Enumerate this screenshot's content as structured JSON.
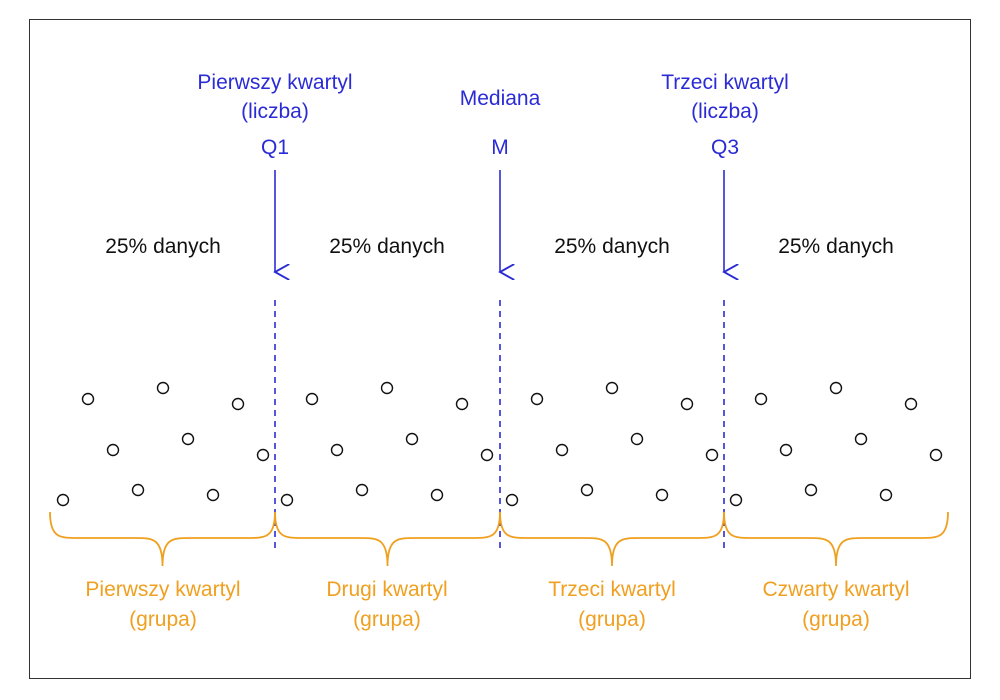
{
  "colors": {
    "marker": "#2b2bd6",
    "group": "#f0a020",
    "text": "#111111",
    "frame": "#333333"
  },
  "markers": [
    {
      "line1": "Pierwszy kwartyl",
      "line2": "(liczba)",
      "symbol": "Q1"
    },
    {
      "line1": "",
      "line2": "Mediana",
      "symbol": "M"
    },
    {
      "line1": "Trzeci kwartyl",
      "line2": "(liczba)",
      "symbol": "Q3"
    }
  ],
  "share_labels": [
    "25% danych",
    "25% danych",
    "25% danych",
    "25% danych"
  ],
  "groups": [
    {
      "line1": "Pierwszy kwartyl",
      "line2": "(grupa)"
    },
    {
      "line1": "Drugi kwartyl",
      "line2": "(grupa)"
    },
    {
      "line1": "Trzeci kwartyl",
      "line2": "(grupa)"
    },
    {
      "line1": "Czwarty kwartyl",
      "line2": "(grupa)"
    }
  ],
  "points_per_group": 9
}
